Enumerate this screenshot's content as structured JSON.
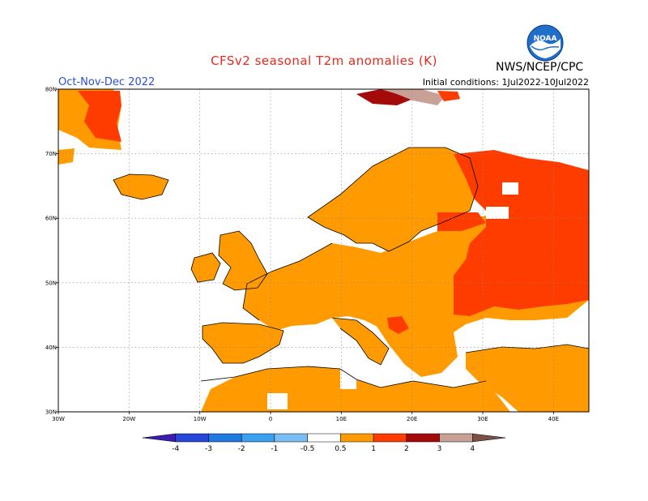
{
  "header": {
    "title": "CFSv2 seasonal T2m anomalies (K)",
    "season": "Oct-Nov-Dec 2022",
    "initial_conditions": "Initial conditions: 1Jul2022-10Jul2022",
    "organization": "NWS/NCEP/CPC",
    "logo_text": "NOAA"
  },
  "map": {
    "lon_range": [
      -30,
      45
    ],
    "lat_range": [
      30,
      80
    ],
    "lon_ticks": [
      {
        "value": -30,
        "label": "30W"
      },
      {
        "value": -20,
        "label": "20W"
      },
      {
        "value": -10,
        "label": "10W"
      },
      {
        "value": 0,
        "label": "0"
      },
      {
        "value": 10,
        "label": "10E"
      },
      {
        "value": 20,
        "label": "20E"
      },
      {
        "value": 30,
        "label": "30E"
      },
      {
        "value": 40,
        "label": "40E"
      }
    ],
    "lat_ticks": [
      {
        "value": 30,
        "label": "30N"
      },
      {
        "value": 40,
        "label": "40N"
      },
      {
        "value": 50,
        "label": "50N"
      },
      {
        "value": 60,
        "label": "60N"
      },
      {
        "value": 70,
        "label": "70N"
      },
      {
        "value": 80,
        "label": "80N"
      }
    ],
    "grid": true
  },
  "colorbar": {
    "labels": [
      "-4",
      "-3",
      "-2",
      "-1",
      "-0.5",
      "0.5",
      "1",
      "2",
      "3",
      "4"
    ],
    "colors": [
      "#3b1cae",
      "#2546d8",
      "#1e79e0",
      "#3ca0f0",
      "#79bdf4",
      "#ffffff",
      "#ff9a00",
      "#ff3c00",
      "#a50a0a",
      "#c8a096",
      "#7a5048"
    ]
  },
  "colors": {
    "land_bg": "#ffffff",
    "anomaly_05_1": "#ff9a00",
    "anomaly_1_2": "#ff3c00",
    "anomaly_2_3": "#a50a0a",
    "anomaly_3_4": "#c8a096"
  }
}
